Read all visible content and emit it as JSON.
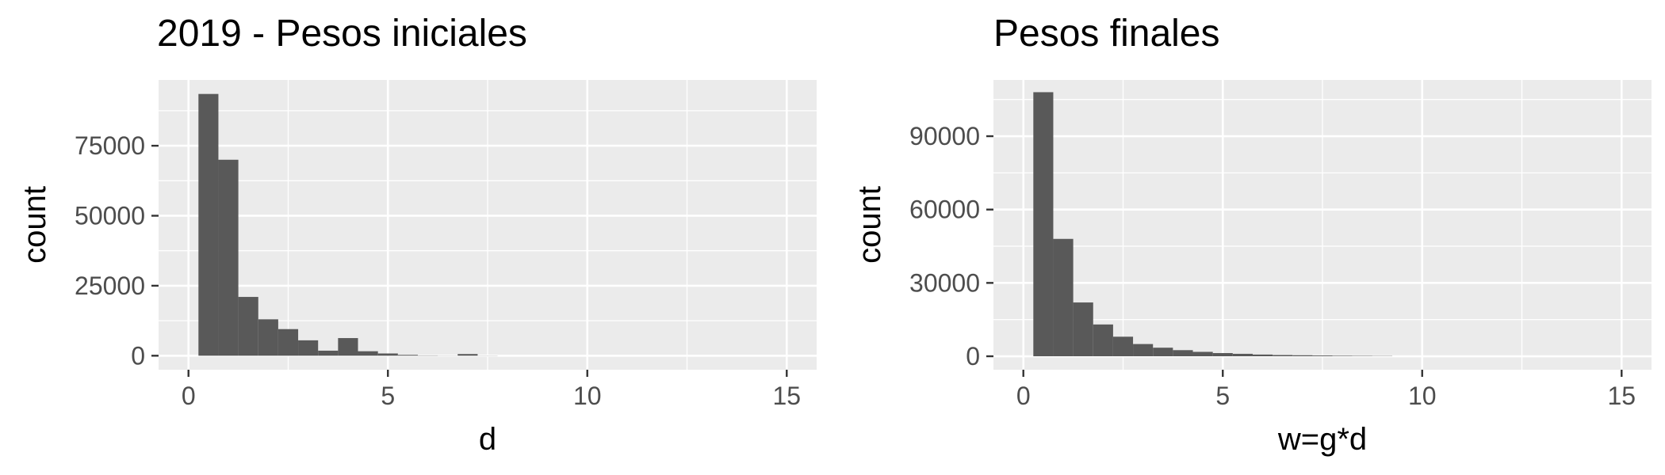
{
  "chart_data": [
    {
      "type": "bar",
      "title": "2019 - Pesos iniciales",
      "xlabel": "d",
      "ylabel": "count",
      "xlim": [
        -0.75,
        15.75
      ],
      "ylim": [
        -5000,
        98500
      ],
      "xticks": [
        0,
        5,
        10,
        15
      ],
      "yticks": [
        0,
        25000,
        50000,
        75000
      ],
      "grid": true,
      "bin_width": 0.5,
      "bins": [
        {
          "x": 0.5,
          "count": 93500
        },
        {
          "x": 1.0,
          "count": 70000
        },
        {
          "x": 1.5,
          "count": 21000
        },
        {
          "x": 2.0,
          "count": 13000
        },
        {
          "x": 2.5,
          "count": 9500
        },
        {
          "x": 3.0,
          "count": 5500
        },
        {
          "x": 3.5,
          "count": 1800
        },
        {
          "x": 4.0,
          "count": 6300
        },
        {
          "x": 4.5,
          "count": 1600
        },
        {
          "x": 5.0,
          "count": 800
        },
        {
          "x": 5.5,
          "count": 300
        },
        {
          "x": 6.0,
          "count": 100
        },
        {
          "x": 6.5,
          "count": 50
        },
        {
          "x": 7.0,
          "count": 600
        },
        {
          "x": 7.5,
          "count": 50
        }
      ]
    },
    {
      "type": "bar",
      "title": "Pesos finales",
      "xlabel": "w=g*d",
      "ylabel": "count",
      "xlim": [
        -0.75,
        15.75
      ],
      "ylim": [
        -5500,
        113000
      ],
      "xticks": [
        0,
        5,
        10,
        15
      ],
      "yticks": [
        0,
        30000,
        60000,
        90000
      ],
      "grid": true,
      "bin_width": 0.5,
      "bins": [
        {
          "x": 0.5,
          "count": 108000
        },
        {
          "x": 1.0,
          "count": 48000
        },
        {
          "x": 1.5,
          "count": 22000
        },
        {
          "x": 2.0,
          "count": 13000
        },
        {
          "x": 2.5,
          "count": 8000
        },
        {
          "x": 3.0,
          "count": 5000
        },
        {
          "x": 3.5,
          "count": 3500
        },
        {
          "x": 4.0,
          "count": 2500
        },
        {
          "x": 4.5,
          "count": 1800
        },
        {
          "x": 5.0,
          "count": 1300
        },
        {
          "x": 5.5,
          "count": 1000
        },
        {
          "x": 6.0,
          "count": 700
        },
        {
          "x": 6.5,
          "count": 500
        },
        {
          "x": 7.0,
          "count": 400
        },
        {
          "x": 7.5,
          "count": 300
        },
        {
          "x": 8.0,
          "count": 200
        },
        {
          "x": 8.5,
          "count": 150
        },
        {
          "x": 9.0,
          "count": 100
        }
      ]
    }
  ],
  "colors": {
    "panel_background": "#ebebeb",
    "grid_major": "#ffffff",
    "bar_fill": "#595959",
    "tick_text": "#4d4d4d",
    "axis_tick": "#333333"
  }
}
